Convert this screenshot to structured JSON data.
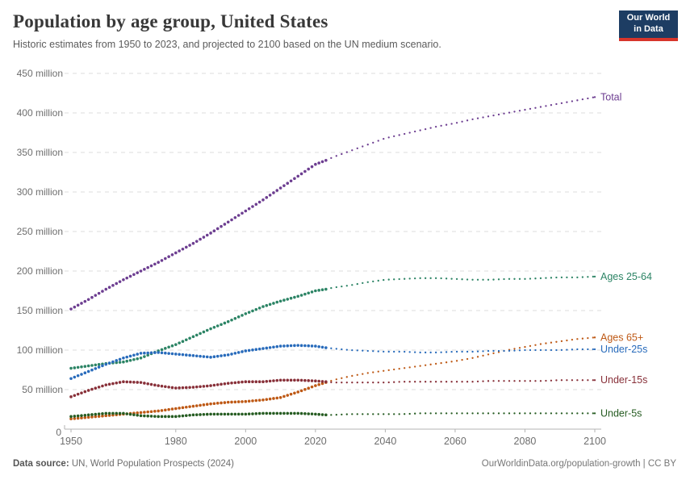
{
  "header": {
    "title": "Population by age group, United States",
    "subtitle": "Historic estimates from 1950 to 2023, and projected to 2100 based on the UN medium scenario."
  },
  "logo": {
    "line1": "Our World",
    "line2": "in Data",
    "bg_color": "#1d3d63",
    "accent_color": "#d7352b"
  },
  "footer": {
    "source_label": "Data source:",
    "source_text": " UN, World Population Prospects (2024)",
    "right_text": "OurWorldinData.org/population-growth | CC BY"
  },
  "chart_data": {
    "type": "line",
    "title": "Population by age group, United States",
    "unit": "million",
    "ylim": [
      0,
      450
    ],
    "ytick_interval": 50,
    "yticks": [
      0,
      50,
      100,
      150,
      200,
      250,
      300,
      350,
      400,
      450
    ],
    "xlim": [
      1950,
      2100
    ],
    "xticks": [
      1950,
      1980,
      2000,
      2020,
      2040,
      2060,
      2080,
      2100
    ],
    "grid": "dashed-horizontal",
    "legend_position": "right-edge-labels",
    "projection_start_year": 2023,
    "x": [
      1950,
      1955,
      1960,
      1965,
      1970,
      1975,
      1980,
      1985,
      1990,
      1995,
      2000,
      2005,
      2010,
      2015,
      2020,
      2023,
      2025,
      2030,
      2035,
      2040,
      2045,
      2050,
      2055,
      2060,
      2065,
      2070,
      2075,
      2080,
      2085,
      2090,
      2095,
      2100
    ],
    "series": [
      {
        "name": "Total",
        "color": "#6D3E91",
        "values": [
          152,
          164,
          177,
          189,
          200,
          211,
          223,
          235,
          248,
          262,
          276,
          290,
          305,
          320,
          335,
          340,
          344,
          352,
          360,
          368,
          373,
          378,
          383,
          387,
          392,
          396,
          400,
          404,
          408,
          412,
          416,
          420
        ]
      },
      {
        "name": "Ages 25-64",
        "color": "#2C8465",
        "values": [
          77,
          80,
          83,
          85,
          90,
          99,
          107,
          117,
          127,
          136,
          146,
          155,
          162,
          168,
          175,
          177,
          179,
          182,
          186,
          189,
          190,
          191,
          191,
          190,
          189,
          189,
          190,
          190,
          191,
          192,
          192,
          193
        ]
      },
      {
        "name": "Ages 65+",
        "color": "#BE5915",
        "values": [
          13,
          15,
          17,
          19,
          21,
          23,
          26,
          29,
          32,
          34,
          35,
          37,
          40,
          47,
          55,
          59,
          62,
          67,
          71,
          74,
          77,
          80,
          83,
          86,
          90,
          95,
          100,
          104,
          108,
          111,
          114,
          116
        ]
      },
      {
        "name": "Under-25s",
        "color": "#286BBB",
        "values": [
          64,
          73,
          82,
          90,
          96,
          97,
          95,
          93,
          91,
          94,
          99,
          102,
          105,
          106,
          105,
          103,
          102,
          100,
          99,
          98,
          98,
          97,
          97,
          98,
          98,
          99,
          99,
          100,
          100,
          100,
          101,
          101
        ]
      },
      {
        "name": "Under-15s",
        "color": "#883039",
        "values": [
          41,
          49,
          56,
          60,
          59,
          55,
          52,
          53,
          55,
          58,
          60,
          60,
          62,
          62,
          61,
          60,
          59,
          59,
          59,
          59,
          60,
          60,
          60,
          60,
          60,
          61,
          61,
          61,
          61,
          62,
          62,
          62
        ]
      },
      {
        "name": "Under-5s",
        "color": "#265C22",
        "values": [
          16,
          18,
          20,
          20,
          17,
          16,
          16,
          18,
          19,
          19,
          19,
          20,
          20,
          20,
          19,
          18,
          18,
          19,
          19,
          19,
          19,
          20,
          20,
          20,
          20,
          20,
          20,
          20,
          20,
          20,
          20,
          20
        ]
      }
    ]
  }
}
